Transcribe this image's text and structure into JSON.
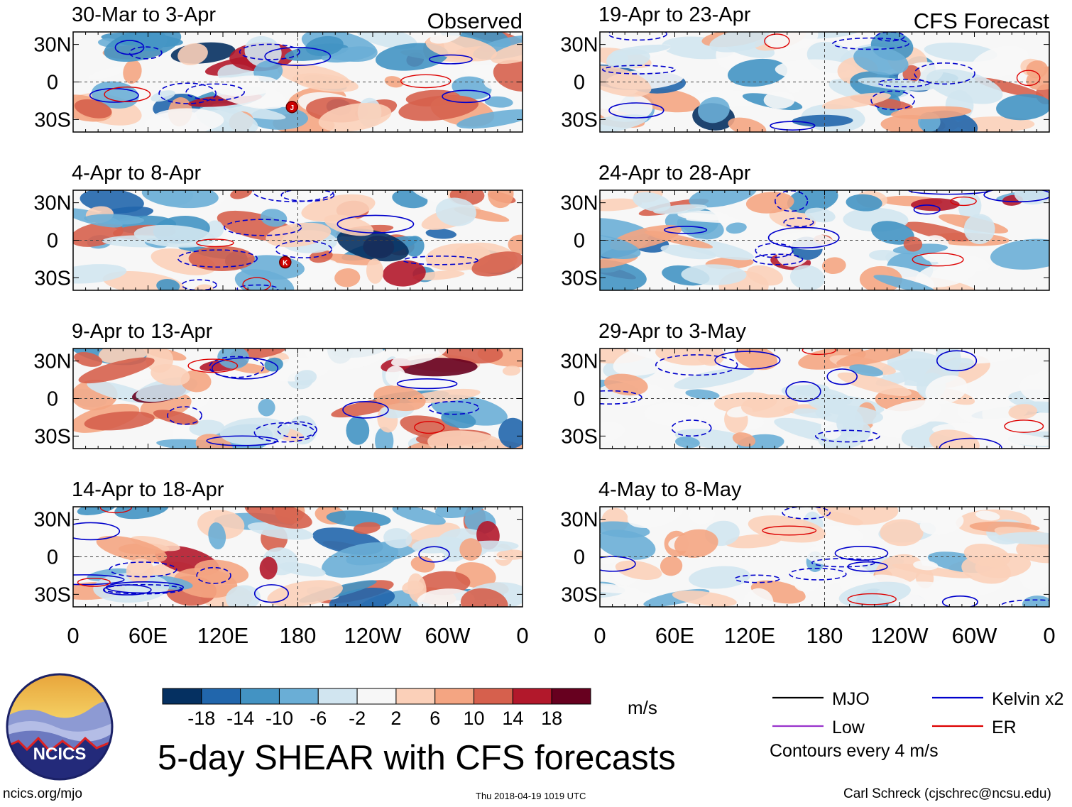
{
  "chart_data": {
    "type": "heatmap",
    "title": "5-day SHEAR with CFS forecasts",
    "observed_label": "Observed",
    "forecast_label": "CFS Forecast",
    "units": "m/s",
    "x_ticks": [
      "0",
      "60E",
      "120E",
      "180",
      "120W",
      "60W",
      "0"
    ],
    "y_ticks": [
      "30N",
      "0",
      "30S"
    ],
    "ylim": [
      -40,
      40
    ],
    "xlim": [
      0,
      360
    ],
    "colorbar": {
      "labels": [
        "-18",
        "-14",
        "-10",
        "-6",
        "-2",
        "2",
        "6",
        "10",
        "14",
        "18"
      ],
      "colors": [
        "#053061",
        "#2166ac",
        "#4393c3",
        "#6aaed6",
        "#d1e5f0",
        "#f7f7f7",
        "#fbd0b9",
        "#f4a582",
        "#d6604d",
        "#b2182b",
        "#67001f"
      ]
    },
    "panels": [
      {
        "period": "30-Mar to 3-Apr",
        "column": "observed",
        "storm_markers": [
          "J"
        ]
      },
      {
        "period": "4-Apr to 8-Apr",
        "column": "observed",
        "storm_markers": [
          "K"
        ]
      },
      {
        "period": "9-Apr to 13-Apr",
        "column": "observed",
        "storm_markers": []
      },
      {
        "period": "14-Apr to 18-Apr",
        "column": "observed",
        "storm_markers": []
      },
      {
        "period": "19-Apr to 23-Apr",
        "column": "forecast",
        "storm_markers": []
      },
      {
        "period": "24-Apr to 28-Apr",
        "column": "forecast",
        "storm_markers": []
      },
      {
        "period": "29-Apr to 3-May",
        "column": "forecast",
        "storm_markers": []
      },
      {
        "period": "4-May to 8-May",
        "column": "forecast",
        "storm_markers": []
      }
    ],
    "legend": [
      {
        "label": "MJO",
        "color": "#000000"
      },
      {
        "label": "Kelvin x2",
        "color": "#0000cc"
      },
      {
        "label": "Low",
        "color": "#9933cc"
      },
      {
        "label": "ER",
        "color": "#dd0000"
      }
    ],
    "contour_note": "Contours every 4 m/s"
  },
  "logo_text": "NCICS",
  "footer": {
    "left": "ncics.org/mjo",
    "center": "Thu 2018-04-19 1019 UTC",
    "right": "Carl Schreck (cjschrec@ncsu.edu)"
  }
}
